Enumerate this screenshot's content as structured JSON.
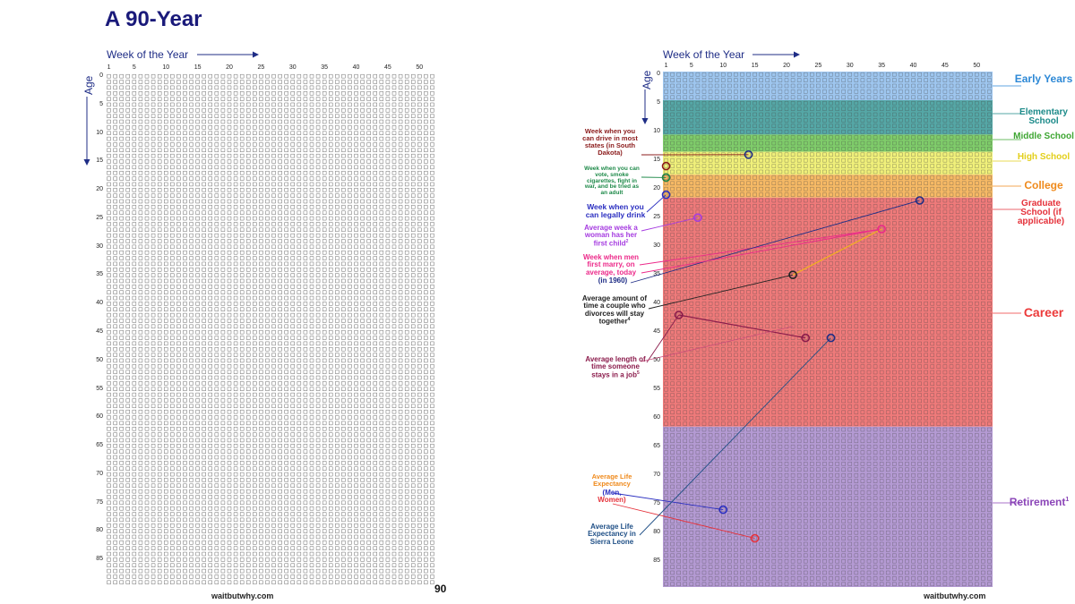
{
  "title": "A 90-Year",
  "week_axis_label": "Week of the Year",
  "age_axis_label": "Age",
  "week_ticks": [
    1,
    5,
    10,
    15,
    20,
    25,
    30,
    35,
    40,
    45,
    50
  ],
  "age_ticks": [
    0,
    5,
    10,
    15,
    20,
    25,
    30,
    35,
    40,
    45,
    50,
    55,
    60,
    65,
    70,
    75,
    80,
    85
  ],
  "footer": "waitbutwhy.com",
  "page_number": "90",
  "grid": {
    "weeks": 52,
    "years": 90
  },
  "colors": {
    "title": "#1a1a7a",
    "axis": "#1f2d86",
    "grid_line": "#6b6b6b"
  },
  "stages": [
    {
      "name": "Early Years",
      "start_age": 0,
      "end_age": 5,
      "color": "#9ec6ef",
      "label_color": "#2e89d6"
    },
    {
      "name": "Elementary School",
      "start_age": 5,
      "end_age": 11,
      "color": "#55a7a6",
      "label_color": "#1b8a89"
    },
    {
      "name": "Middle School",
      "start_age": 11,
      "end_age": 14,
      "color": "#7fcc6a",
      "label_color": "#3ea632"
    },
    {
      "name": "High School",
      "start_age": 14,
      "end_age": 18,
      "color": "#f0f07a",
      "label_color": "#e3cf1b"
    },
    {
      "name": "College",
      "start_age": 18,
      "end_age": 22,
      "color": "#f6b965",
      "label_color": "#ef8a1c"
    },
    {
      "name": "Graduate School (if applicable)",
      "start_age": 22,
      "end_age": 22,
      "color": "#ef7a7a",
      "label_color": "#e5323b"
    },
    {
      "name": "Career",
      "start_age": 22,
      "end_age": 62,
      "color": "#ef7a7a",
      "label_color": "#ec3a3a"
    },
    {
      "name": "Retirement",
      "superscript": "1",
      "start_age": 62,
      "end_age": 90,
      "color": "#b49ad3",
      "label_color": "#8b45b8"
    }
  ],
  "milestones": [
    {
      "text": "Week when you can drive in most states (in South Dakota)",
      "age": 14,
      "week": 14,
      "color": "#8b1b1b"
    },
    {
      "text": "Week when you can vote, smoke cigarettes, fight in war, and be tried as an adult",
      "age": 18,
      "week": 1,
      "color": "#1f8a4a"
    },
    {
      "text": "Week when you can legally drink",
      "age": 21,
      "week": 1,
      "color": "#2a2ec0"
    },
    {
      "text": "Average week a woman has her first child",
      "superscript": "2",
      "age": 25,
      "week": 6,
      "color": "#a53be0"
    },
    {
      "text": "Week when men first marry, on average, today",
      "age": 27,
      "week": 35,
      "color": "#ec2a8a"
    },
    {
      "text": "(in 1960)",
      "age": 22,
      "week": 41,
      "color": "#1f2d86"
    },
    {
      "text": "Average amount of time a couple who divorces will stay together",
      "superscript": "4",
      "age": 35,
      "week": 21,
      "color": "#222222"
    },
    {
      "text": "Average length of time someone stays in a job",
      "superscript": "5",
      "age": 42,
      "week": 3,
      "color": "#8b1b4b"
    },
    {
      "text": "Average Life Expectancy",
      "age": 46,
      "week": 27,
      "color": "#ef8a1c"
    },
    {
      "text": "(Men,",
      "age": 76,
      "week": 10,
      "color": "#2a2ec0"
    },
    {
      "text": "Women)",
      "age": 81,
      "week": 15,
      "color": "#e5323b"
    },
    {
      "text": "Average Life Expectancy in Sierra Leone",
      "age": 46,
      "week": 27,
      "color": "#1f4f86"
    }
  ],
  "labels": {
    "early": "Early Years",
    "elementary": "Elementary School",
    "middle": "Middle School",
    "high": "High School",
    "college": "College",
    "grad": "Graduate School (if applicable)",
    "career": "Career",
    "retirement": "Retirement",
    "retirement_sup": "1",
    "note_drive": "Week when you can drive in most states (in South Dakota)",
    "note_vote": "Week when you can vote, smoke cigarettes, fight in war, and be tried as an adult",
    "note_drink": "Week when you can legally drink",
    "note_child": "Average week a woman has her first child",
    "note_child_sup": "2",
    "note_marry": "Week when men first marry, on average, today",
    "note_marry_1960": "(in 1960)",
    "note_divorce": "Average amount of time a couple who divorces will stay together",
    "note_divorce_sup": "4",
    "note_job": "Average length of time someone stays in a job",
    "note_job_sup": "5",
    "note_life": "Average Life Expectancy",
    "note_life_men": "(Men,",
    "note_life_women": "Women)",
    "note_sierra": "Average Life Expectancy in Sierra Leone"
  }
}
